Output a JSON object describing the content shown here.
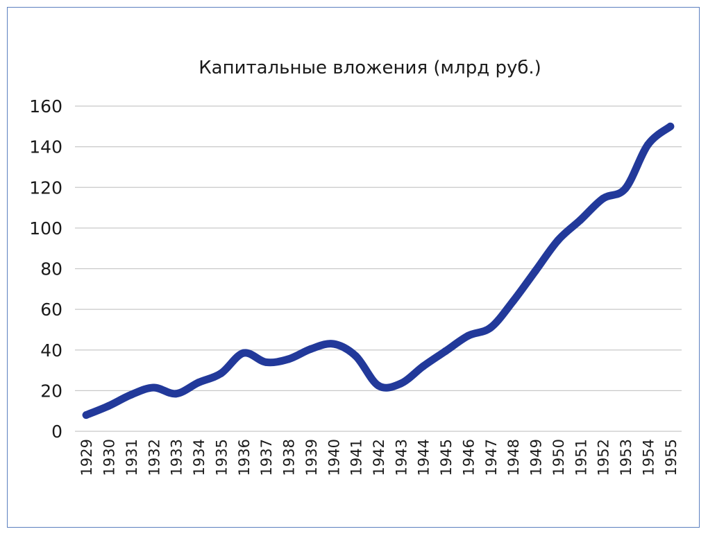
{
  "chart_data": {
    "type": "line",
    "title": "Капитальные вложения (млрд руб.)",
    "xlabel": "",
    "ylabel": "",
    "ylim": [
      0,
      160
    ],
    "y_ticks": [
      "0",
      "20",
      "40",
      "60",
      "80",
      "100",
      "120",
      "140",
      "160"
    ],
    "grid": true,
    "legend": "none",
    "x": [
      "1929",
      "1930",
      "1931",
      "1932",
      "1933",
      "1934",
      "1935",
      "1936",
      "1937",
      "1938",
      "1939",
      "1940",
      "1941",
      "1942",
      "1943",
      "1944",
      "1945",
      "1946",
      "1947",
      "1948",
      "1949",
      "1950",
      "1951",
      "1952",
      "1953",
      "1954",
      "1955"
    ],
    "series": [
      {
        "name": "",
        "color": "#22399a",
        "values": [
          8,
          12.5,
          18,
          21.5,
          18.5,
          24,
          28.5,
          38.5,
          34,
          35.5,
          40.5,
          43,
          37,
          22.5,
          23.5,
          32,
          39.5,
          47,
          51,
          64,
          79,
          94,
          104,
          114.5,
          119.5,
          141,
          150
        ]
      }
    ]
  }
}
